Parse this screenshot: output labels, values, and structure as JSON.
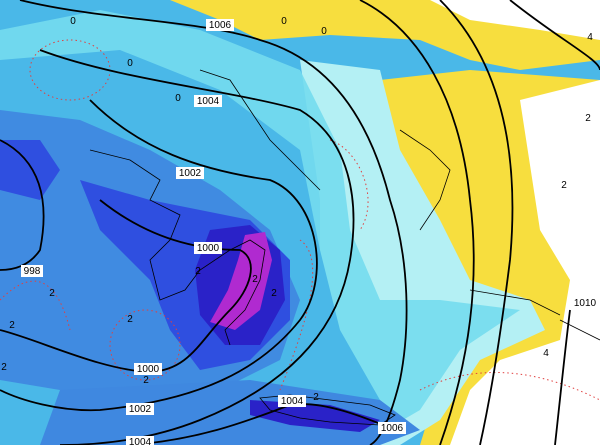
{
  "colors": {
    "yellow": "#f7de3e",
    "pale_cyan": "#b4f0f4",
    "light_cyan": "#74dcee",
    "cyan": "#4ab8e8",
    "mid_blue": "#3f88e0",
    "blue": "#2f4fe0",
    "deep_blue": "#2a22c8",
    "magenta": "#b02ad0",
    "isobar": "#000000",
    "dotted_contour": "#e04040"
  },
  "isobar_labels": [
    {
      "text": "1006"
    },
    {
      "text": "1004"
    },
    {
      "text": "1002"
    },
    {
      "text": "1000"
    },
    {
      "text": "998"
    },
    {
      "text": "1000"
    },
    {
      "text": "1002"
    },
    {
      "text": "1004"
    },
    {
      "text": "1004"
    },
    {
      "text": "1006"
    },
    {
      "text": "1010"
    }
  ],
  "contour_labels": [
    {
      "text": "0"
    },
    {
      "text": "0"
    },
    {
      "text": "0"
    },
    {
      "text": "0"
    },
    {
      "text": "0"
    },
    {
      "text": "2"
    },
    {
      "text": "2"
    },
    {
      "text": "2"
    },
    {
      "text": "2"
    },
    {
      "text": "2"
    },
    {
      "text": "2"
    },
    {
      "text": "2"
    },
    {
      "text": "2"
    },
    {
      "text": "2"
    },
    {
      "text": "2"
    },
    {
      "text": "2"
    },
    {
      "text": "4"
    },
    {
      "text": "4"
    }
  ]
}
